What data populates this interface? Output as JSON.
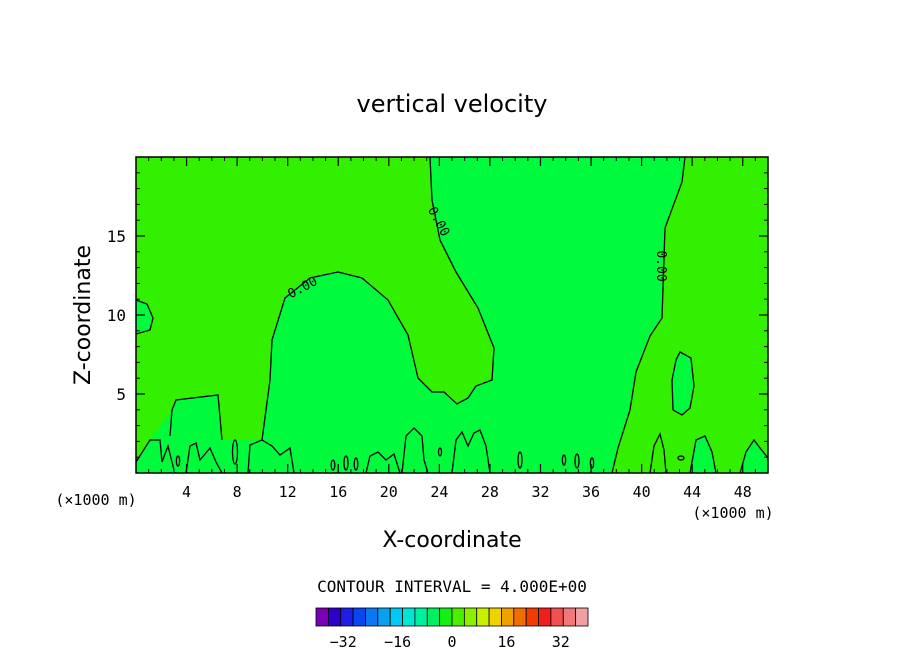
{
  "chart_data": {
    "type": "contour",
    "title": "vertical velocity",
    "xlabel": "X-coordinate",
    "ylabel": "Z-coordinate",
    "x_unit_left": "(×1000 m)",
    "x_unit_right": "(×1000 m)",
    "xlim": [
      0,
      50
    ],
    "ylim": [
      0,
      20
    ],
    "x_ticks": [
      4,
      8,
      12,
      16,
      20,
      24,
      28,
      32,
      36,
      40,
      44,
      48
    ],
    "y_ticks": [
      5,
      10,
      15
    ],
    "contour_interval_text": "CONTOUR INTERVAL = 4.000E+00",
    "contour_levels": [
      0
    ],
    "contour_labels": [
      {
        "text": "0.00",
        "x": 13.2,
        "z": 11.7
      },
      {
        "text": "0.00",
        "x": 23.9,
        "z": 15.9
      },
      {
        "text": "0.00",
        "x": 41.5,
        "z": 13.1
      }
    ],
    "colorbar": {
      "tick_labels": [
        "-32",
        "-16",
        "0",
        "16",
        "32"
      ],
      "tick_values": [
        -32,
        -16,
        0,
        16,
        32
      ],
      "range": [
        -40,
        40
      ],
      "colors": [
        "#7b00b4",
        "#2c00c8",
        "#1e1ee6",
        "#0a46f0",
        "#0a78f0",
        "#0aa0f0",
        "#00c8f0",
        "#00e6d2",
        "#00f0a0",
        "#00f064",
        "#14f014",
        "#4bf000",
        "#8cf000",
        "#c8f000",
        "#f0d200",
        "#f0a000",
        "#f06e00",
        "#f03c00",
        "#f01e1e",
        "#f05050",
        "#f07878",
        "#f0a0a0"
      ]
    },
    "regions": {
      "positive_color": "#32f000",
      "near_zero_color": "#00fa3c"
    }
  }
}
